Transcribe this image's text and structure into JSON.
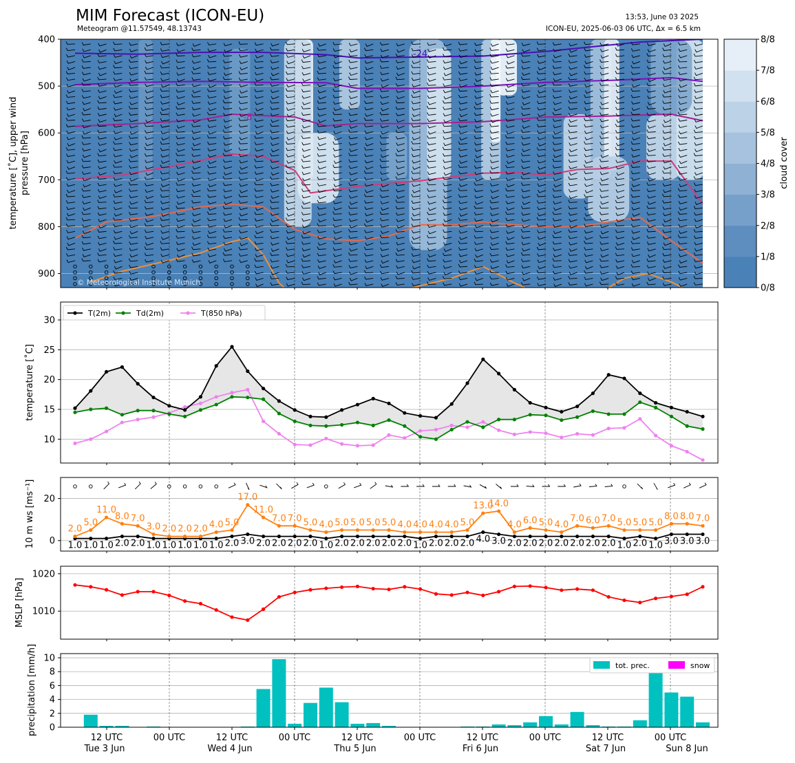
{
  "header": {
    "title": "MIM Forecast (ICON-EU)",
    "subtitle": "Meteogram @11.57549, 48.13743",
    "timestamp": "13:53, June 03 2025",
    "run_info": "ICON-EU, 2025-06-03 06 UTC, Δx = 6.5 km",
    "copyright": "© Meteorological Institute Munich"
  },
  "x_ticks": [
    {
      "major": "12 UTC",
      "minor": "Tue 3 Jun"
    },
    {
      "major": "00 UTC",
      "minor": ""
    },
    {
      "major": "12 UTC",
      "minor": "Wed 4 Jun"
    },
    {
      "major": "00 UTC",
      "minor": ""
    },
    {
      "major": "12 UTC",
      "minor": "Thu 5 Jun"
    },
    {
      "major": "00 UTC",
      "minor": ""
    },
    {
      "major": "12 UTC",
      "minor": "Fri 6 Jun"
    },
    {
      "major": "00 UTC",
      "minor": ""
    },
    {
      "major": "12 UTC",
      "minor": "Sat 7 Jun"
    },
    {
      "major": "00 UTC",
      "minor": ""
    },
    {
      "major": "",
      "minor": "Sun 8 Jun"
    }
  ],
  "chart_data": [
    {
      "type": "heatmap",
      "ylabel": "temperature [˚C], upper wind\npressure [hPa]",
      "ylim": [
        930,
        400
      ],
      "y_ticks": [
        400,
        500,
        600,
        700,
        800,
        900
      ],
      "colorbar_label": "cloud cover",
      "colorbar_ticks": [
        "0/8",
        "1/8",
        "2/8",
        "3/8",
        "4/8",
        "5/8",
        "6/8",
        "7/8",
        "8/8"
      ],
      "isotherm_labels": [
        {
          "label": "-24",
          "x": 22.0,
          "p": 430,
          "color": "#4b0fb5"
        },
        {
          "label": "-24",
          "x": 64.5,
          "p": 410,
          "color": "#4b0fb5"
        },
        {
          "label": "-16",
          "x": 63.5,
          "p": 490,
          "color": "#7c10b8"
        },
        {
          "label": "-8",
          "x": 11.0,
          "p": 565,
          "color": "#a62095"
        },
        {
          "label": "0",
          "x": 64.0,
          "p": 678,
          "color": "#d03c7a"
        },
        {
          "label": "16",
          "x": 54.0,
          "p": 898,
          "color": "#e4883a"
        },
        {
          "label": "16",
          "x": 77.0,
          "p": 900,
          "color": "#e4883a"
        }
      ]
    },
    {
      "type": "line",
      "ylabel": "temperature [˚C]",
      "ylim": [
        6,
        33
      ],
      "y_ticks": [
        10,
        15,
        20,
        25,
        30
      ],
      "legend": "top-left",
      "series": [
        {
          "name": "T(2m)",
          "color": "#000000",
          "values": [
            15.2,
            18.1,
            21.3,
            22.1,
            19.3,
            17.0,
            15.6,
            14.9,
            17.1,
            22.3,
            25.5,
            21.4,
            18.5,
            16.4,
            14.9,
            13.8,
            13.7,
            14.9,
            15.8,
            16.8,
            16.0,
            14.4,
            13.9,
            13.6,
            15.9,
            19.4,
            23.4,
            21.0,
            18.3,
            16.1,
            15.3,
            14.6,
            15.5,
            17.7,
            20.8,
            20.2,
            17.7,
            16.1,
            15.3,
            14.6,
            13.8
          ]
        },
        {
          "name": "Td(2m)",
          "color": "#008000",
          "values": [
            14.5,
            15.0,
            15.2,
            14.1,
            14.8,
            14.8,
            14.2,
            13.8,
            14.9,
            15.8,
            17.1,
            17.0,
            16.7,
            14.3,
            13.0,
            12.3,
            12.2,
            12.4,
            12.8,
            12.3,
            13.2,
            12.2,
            10.4,
            10.0,
            11.6,
            12.9,
            12.0,
            13.3,
            13.3,
            14.1,
            14.0,
            13.2,
            13.7,
            14.7,
            14.2,
            14.2,
            16.2,
            15.3,
            13.8,
            12.2,
            11.7
          ]
        },
        {
          "name": "T(850 hPa)",
          "color": "#ee82ee",
          "values": [
            9.3,
            10.0,
            11.3,
            12.8,
            13.3,
            13.7,
            14.4,
            15.4,
            16.0,
            17.1,
            17.8,
            18.3,
            13.0,
            10.9,
            9.1,
            9.0,
            10.1,
            9.2,
            8.9,
            9.0,
            10.7,
            10.2,
            11.4,
            11.6,
            12.3,
            12.0,
            12.9,
            11.5,
            10.8,
            11.2,
            11.0,
            10.3,
            10.9,
            10.7,
            11.8,
            11.9,
            13.4,
            10.6,
            8.9,
            7.9,
            6.5
          ]
        }
      ]
    },
    {
      "type": "line",
      "ylabel": "10 m ws [ms⁻¹]",
      "ylim": [
        -5,
        30
      ],
      "y_ticks": [
        0,
        20
      ],
      "series": [
        {
          "name": "gust",
          "color": "#ff7f0e",
          "values": [
            2.0,
            5.0,
            11.0,
            8.0,
            7.0,
            3.0,
            2.0,
            2.0,
            2.0,
            4.0,
            5.0,
            17.0,
            11.0,
            7.0,
            7.0,
            5.0,
            4.0,
            5.0,
            5.0,
            5.0,
            5.0,
            4.0,
            4.0,
            4.0,
            4.0,
            5.0,
            13.0,
            14.0,
            4.0,
            6.0,
            5.0,
            4.0,
            7.0,
            6.0,
            7.0,
            5.0,
            5.0,
            5.0,
            8.0,
            8.0,
            7.0
          ]
        },
        {
          "name": "mean",
          "color": "#000000",
          "values": [
            1.0,
            1.0,
            1.0,
            2.0,
            2.0,
            1.0,
            1.0,
            1.0,
            1.0,
            1.0,
            2.0,
            3.0,
            2.0,
            2.0,
            2.0,
            2.0,
            1.0,
            2.0,
            2.0,
            2.0,
            2.0,
            2.0,
            1.0,
            2.0,
            2.0,
            2.0,
            4.0,
            3.0,
            2.0,
            2.0,
            2.0,
            2.0,
            2.0,
            2.0,
            2.0,
            1.0,
            2.0,
            1.0,
            3.0,
            3.0,
            3.0
          ]
        }
      ],
      "wind_dir_deg": [
        -1,
        -1,
        225,
        250,
        225,
        230,
        -1,
        -1,
        -1,
        -1,
        245,
        335,
        290,
        315,
        240,
        250,
        -1,
        240,
        250,
        235,
        280,
        270,
        270,
        270,
        270,
        280,
        300,
        310,
        270,
        275,
        270,
        270,
        260,
        265,
        265,
        -1,
        315,
        330,
        250,
        245,
        245
      ],
      "labels_gust": [
        "2.0",
        "5.0",
        "11.0",
        "8.0",
        "7.0",
        "3.0",
        "2.0",
        "2.0",
        "2.0",
        "4.0",
        "5.0",
        "17.0",
        "11.0",
        "7.0",
        "7.0",
        "5.0",
        "4.0",
        "5.0",
        "5.0",
        "5.0",
        "5.0",
        "4.0",
        "4.0",
        "4.0",
        "4.0",
        "5.0",
        "13.0",
        "14.0",
        "4.0",
        "6.0",
        "5.0",
        "4.0",
        "7.0",
        "6.0",
        "7.0",
        "5.0",
        "5.0",
        "5.0",
        "8.0",
        "8.0",
        "7.0"
      ],
      "labels_mean": [
        "1.0",
        "1.0",
        "1.0",
        "2.0",
        "2.0",
        "1.0",
        "1.0",
        "1.0",
        "1.0",
        "1.0",
        "2.0",
        "3.0",
        "2.0",
        "2.0",
        "2.0",
        "2.0",
        "1.0",
        "2.0",
        "2.0",
        "2.0",
        "2.0",
        "2.0",
        "1.0",
        "2.0",
        "2.0",
        "2.0",
        "4.0",
        "3.0",
        "2.0",
        "2.0",
        "2.0",
        "2.0",
        "2.0",
        "2.0",
        "2.0",
        "1.0",
        "2.0",
        "1.0",
        "3.0",
        "3.0",
        "3.0"
      ]
    },
    {
      "type": "line",
      "ylabel": "MSLP [hPa]",
      "ylim": [
        1002.5,
        1022
      ],
      "y_ticks": [
        1010,
        1020
      ],
      "series": [
        {
          "name": "MSLP",
          "color": "#ff0000",
          "values": [
            1017.0,
            1016.5,
            1015.7,
            1014.3,
            1015.2,
            1015.2,
            1014.2,
            1012.7,
            1012.0,
            1010.3,
            1008.4,
            1007.6,
            1010.5,
            1013.8,
            1015.0,
            1015.7,
            1016.1,
            1016.4,
            1016.6,
            1016.0,
            1015.8,
            1016.5,
            1015.9,
            1014.6,
            1014.3,
            1015.0,
            1014.2,
            1015.2,
            1016.6,
            1016.7,
            1016.3,
            1015.6,
            1015.9,
            1015.6,
            1013.8,
            1012.9,
            1012.3,
            1013.4,
            1013.9,
            1014.5,
            1016.5
          ]
        }
      ]
    },
    {
      "type": "bar",
      "ylabel": "precipitation [mm/h]",
      "ylim": [
        0,
        10.6
      ],
      "y_ticks": [
        0,
        2,
        4,
        6,
        8,
        10
      ],
      "legend": "top-right",
      "series": [
        {
          "name": "tot. prec.",
          "color": "#00c0c0",
          "values": [
            0,
            1.8,
            0.2,
            0.2,
            0,
            0.1,
            0,
            0,
            0,
            0,
            0,
            0.1,
            5.5,
            9.8,
            0.5,
            3.5,
            5.7,
            3.6,
            0.5,
            0.6,
            0.2,
            0,
            0,
            0,
            0,
            0.1,
            0.1,
            0.4,
            0.3,
            0.7,
            1.6,
            0.4,
            2.2,
            0.3,
            0.1,
            0.1,
            1.0,
            7.9,
            5.0,
            4.4,
            0.7
          ]
        },
        {
          "name": "snow",
          "color": "#ff00ff",
          "values": [
            0,
            0,
            0,
            0,
            0,
            0,
            0,
            0,
            0,
            0,
            0,
            0,
            0,
            0,
            0,
            0,
            0,
            0,
            0,
            0,
            0,
            0,
            0,
            0,
            0,
            0,
            0,
            0,
            0,
            0,
            0,
            0,
            0,
            0,
            0,
            0,
            0,
            0,
            0,
            0,
            0
          ]
        }
      ]
    }
  ]
}
